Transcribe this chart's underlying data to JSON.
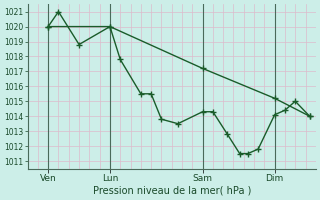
{
  "xlabel": "Pression niveau de la mer( hPa )",
  "bg_color": "#cceee8",
  "plot_bg_color": "#cceee8",
  "grid_color": "#ddbbcc",
  "line_color": "#1a5c2a",
  "vline_color": "#4a6a5a",
  "ylim": [
    1010.5,
    1021.5
  ],
  "yticks": [
    1011,
    1012,
    1013,
    1014,
    1015,
    1016,
    1017,
    1018,
    1019,
    1020,
    1021
  ],
  "xlim": [
    -0.5,
    13.5
  ],
  "xtick_labels": [
    "Ven",
    "Lun",
    "Sam",
    "Dim"
  ],
  "xtick_positions": [
    0.5,
    3.5,
    8.0,
    11.5
  ],
  "vline_positions": [
    0.5,
    3.5,
    8.0,
    11.5
  ],
  "series1_x": [
    0.5,
    1.0,
    2.0,
    3.5,
    4.0,
    5.0,
    5.5,
    6.0,
    6.8,
    8.0,
    8.5,
    9.2,
    9.8,
    10.2,
    10.7,
    11.5,
    12.0,
    12.5,
    13.2
  ],
  "series1_y": [
    1020,
    1021,
    1018.8,
    1020,
    1017.8,
    1015.5,
    1015.5,
    1013.8,
    1013.5,
    1014.3,
    1014.3,
    1012.8,
    1011.5,
    1011.5,
    1011.8,
    1014.1,
    1014.4,
    1015.0,
    1014.0
  ],
  "series2_x": [
    0.5,
    3.5,
    8.0,
    11.5,
    13.2
  ],
  "series2_y": [
    1020,
    1020,
    1017.2,
    1015.2,
    1014.0
  ],
  "marker": "+",
  "marker_size": 4,
  "linewidth": 1.0
}
